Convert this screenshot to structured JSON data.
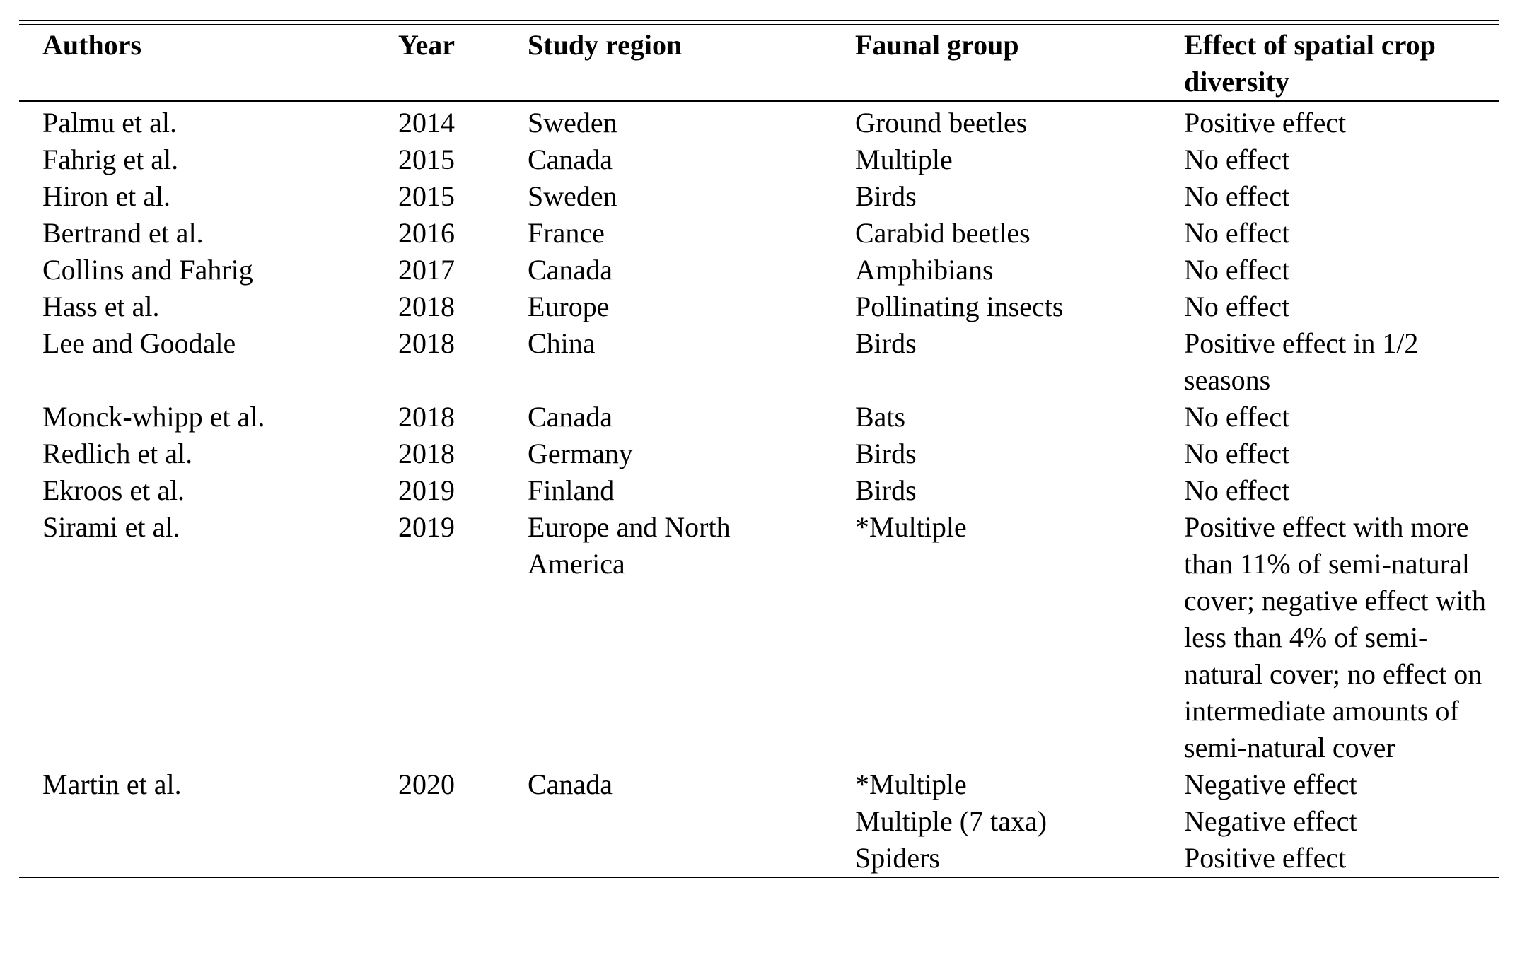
{
  "table": {
    "headers": {
      "authors": "Authors",
      "year": "Year",
      "region": "Study region",
      "fauna": "Faunal group",
      "effect": "Effect of spatial crop diversity"
    },
    "rows": [
      {
        "authors": "Palmu et al.",
        "year": "2014",
        "region": "Sweden",
        "fauna": [
          "Ground beetles"
        ],
        "effect": [
          "Positive effect"
        ]
      },
      {
        "authors": "Fahrig et al.",
        "year": "2015",
        "region": "Canada",
        "fauna": [
          "Multiple"
        ],
        "effect": [
          "No effect"
        ]
      },
      {
        "authors": "Hiron et al.",
        "year": "2015",
        "region": "Sweden",
        "fauna": [
          "Birds"
        ],
        "effect": [
          "No effect"
        ]
      },
      {
        "authors": "Bertrand et al.",
        "year": "2016",
        "region": "France",
        "fauna": [
          "Carabid beetles"
        ],
        "effect": [
          "No effect"
        ]
      },
      {
        "authors": "Collins and Fahrig",
        "year": "2017",
        "region": "Canada",
        "fauna": [
          "Amphibians"
        ],
        "effect": [
          "No effect"
        ]
      },
      {
        "authors": "Hass et al.",
        "year": "2018",
        "region": "Europe",
        "fauna": [
          "Pollinating insects"
        ],
        "effect": [
          "No effect"
        ]
      },
      {
        "authors": "Lee and Goodale",
        "year": "2018",
        "region": "China",
        "fauna": [
          "Birds"
        ],
        "effect": [
          "Positive effect in 1/2 seasons"
        ]
      },
      {
        "authors": "Monck-whipp et al.",
        "year": "2018",
        "region": "Canada",
        "fauna": [
          "Bats"
        ],
        "effect": [
          "No effect"
        ]
      },
      {
        "authors": "Redlich et al.",
        "year": "2018",
        "region": "Germany",
        "fauna": [
          "Birds"
        ],
        "effect": [
          "No effect"
        ]
      },
      {
        "authors": "Ekroos et al.",
        "year": "2019",
        "region": "Finland",
        "fauna": [
          "Birds"
        ],
        "effect": [
          "No effect"
        ]
      },
      {
        "authors": "Sirami et al.",
        "year": "2019",
        "region": "Europe and North America",
        "fauna": [
          "*Multiple"
        ],
        "effect": [
          "Positive effect with more than 11% of semi-natural cover; negative effect with less than 4% of semi-natural cover; no effect on intermediate amounts of semi-natural cover"
        ]
      },
      {
        "authors": "Martin et al.",
        "year": "2020",
        "region": "Canada",
        "fauna": [
          "*Multiple",
          "Multiple (7 taxa)",
          "Spiders"
        ],
        "effect": [
          "Negative effect",
          "Negative effect",
          "Positive effect"
        ]
      }
    ]
  }
}
